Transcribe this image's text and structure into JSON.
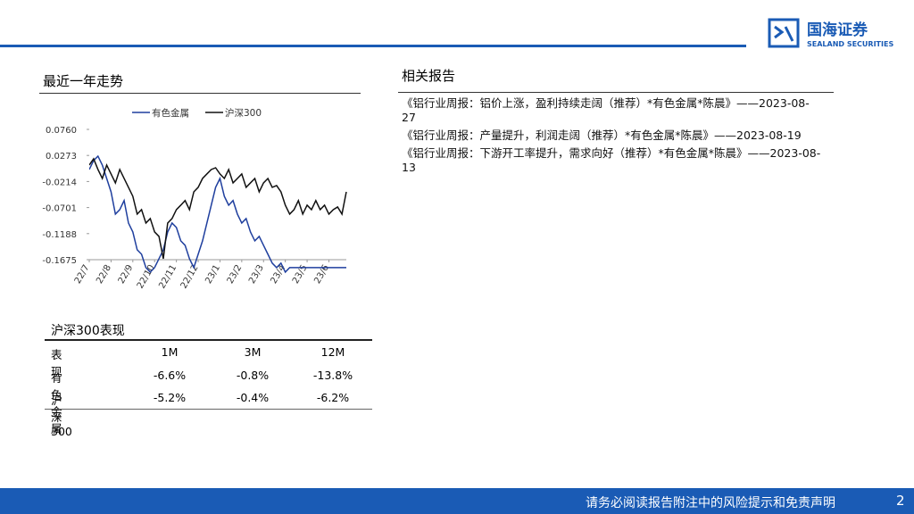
{
  "header": {
    "brand": "国海证券",
    "brand_en": "SEALAND SECURITIES"
  },
  "trend_title": "最近一年走势",
  "chart_data": {
    "type": "line",
    "xlim": [
      0,
      59
    ],
    "xticks": [
      {
        "value": 0,
        "label": "22/7"
      },
      {
        "value": 5,
        "label": "22/8"
      },
      {
        "value": 10,
        "label": "22/9"
      },
      {
        "value": 15,
        "label": "22/10"
      },
      {
        "value": 20,
        "label": "22/11"
      },
      {
        "value": 25,
        "label": "22/12"
      },
      {
        "value": 30,
        "label": "23/1"
      },
      {
        "value": 35,
        "label": "23/2"
      },
      {
        "value": 40,
        "label": "23/3"
      },
      {
        "value": 45,
        "label": "23/4"
      },
      {
        "value": 50,
        "label": "23/5"
      },
      {
        "value": 55,
        "label": "23/6"
      }
    ],
    "ylim": [
      -0.1675,
      0.076
    ],
    "yticks": [
      {
        "value": 0.076,
        "label": "0.0760"
      },
      {
        "value": 0.0273,
        "label": "0.0273"
      },
      {
        "value": -0.0214,
        "label": "-0.0214"
      },
      {
        "value": -0.0701,
        "label": "-0.0701"
      },
      {
        "value": -0.1188,
        "label": "-0.1188"
      },
      {
        "value": -0.1675,
        "label": "-0.1675"
      }
    ],
    "series": [
      {
        "name": "有色金属",
        "color": "#1f3f9e",
        "values": [
          0.001,
          0.0177,
          0.026,
          0.0093,
          -0.0157,
          -0.0407,
          -0.0823,
          -0.074,
          -0.057,
          -0.099,
          -0.1157,
          -0.149,
          -0.1573,
          -0.1823,
          -0.1907,
          -0.1823,
          -0.1657,
          -0.149,
          -0.1157,
          -0.099,
          -0.1073,
          -0.1323,
          -0.1407,
          -0.1657,
          -0.1823,
          -0.1573,
          -0.1323,
          -0.099,
          -0.0657,
          -0.0323,
          -0.0157,
          -0.049,
          -0.0657,
          -0.057,
          -0.0823,
          -0.099,
          -0.0907,
          -0.1157,
          -0.1323,
          -0.124,
          -0.1407,
          -0.1573,
          -0.174,
          -0.1823,
          -0.174,
          -0.1907,
          -0.1823,
          -0.1823,
          -0.1823,
          -0.1823,
          -0.1823,
          -0.1823,
          -0.1823,
          -0.1823,
          -0.1823,
          -0.1823,
          -0.1823,
          -0.1823,
          -0.1823,
          -0.1823
        ]
      },
      {
        "name": "沪深300",
        "color": "#111111",
        "values": [
          0.0093,
          0.021,
          0.001,
          -0.0157,
          0.0093,
          -0.0073,
          -0.024,
          0.001,
          -0.0157,
          -0.0323,
          -0.049,
          -0.0823,
          -0.074,
          -0.099,
          -0.0907,
          -0.1157,
          -0.124,
          -0.1657,
          -0.099,
          -0.0907,
          -0.074,
          -0.0657,
          -0.057,
          -0.074,
          -0.0407,
          -0.0323,
          -0.0157,
          -0.0073,
          0.001,
          0.0043,
          -0.0073,
          -0.0157,
          0.001,
          -0.024,
          -0.0157,
          -0.0073,
          -0.0323,
          -0.024,
          -0.0157,
          -0.0407,
          -0.024,
          -0.0157,
          -0.0323,
          -0.029,
          -0.0407,
          -0.0657,
          -0.0823,
          -0.074,
          -0.057,
          -0.0823,
          -0.0657,
          -0.074,
          -0.057,
          -0.074,
          -0.0657,
          -0.0823,
          -0.074,
          -0.069,
          -0.0823,
          -0.0407
        ]
      }
    ]
  },
  "reports": {
    "title": "相关报告",
    "items": [
      "《铝行业周报：铝价上涨，盈利持续走阔（推荐）*有色金属*陈晨》——2023-08-27",
      "《铝行业周报：产量提升，利润走阔（推荐）*有色金属*陈晨》——2023-08-19",
      "《铝行业周报：下游开工率提升，需求向好（推荐）*有色金属*陈晨》——2023-08-13"
    ]
  },
  "table": {
    "title": "沪深300表现",
    "header": [
      "表现",
      "1M",
      "3M",
      "12M"
    ],
    "rows": [
      [
        "有色金属",
        "-6.6%",
        "-0.8%",
        "-13.8%"
      ],
      [
        "沪深300",
        "-5.2%",
        "-0.4%",
        "-6.2%"
      ]
    ]
  },
  "footer": {
    "disclaimer": "请务必阅读报告附注中的风险提示和免责声明",
    "page": "2"
  }
}
